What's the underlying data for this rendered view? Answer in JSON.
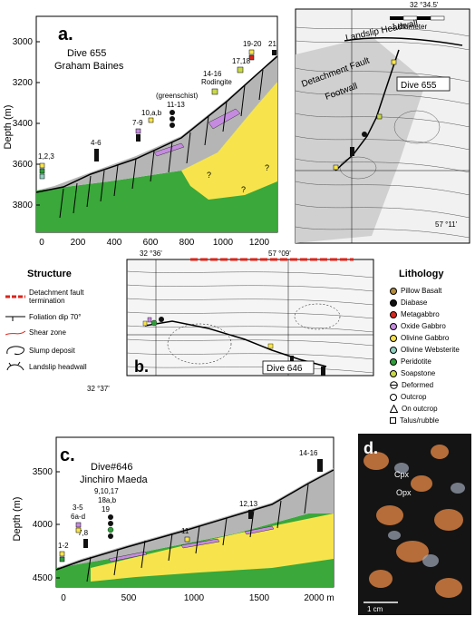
{
  "panel_a": {
    "letter": "a.",
    "dive_label": "Dive 655",
    "pilot": "Graham Baines",
    "y_axis_label": "Depth (m)",
    "y_ticks": [
      "3000",
      "3200",
      "3400",
      "3600",
      "3800"
    ],
    "x_ticks": [
      "0",
      "200",
      "400",
      "600",
      "800",
      "1000",
      "1200"
    ],
    "sample_labels": [
      "1,2,3",
      "4-6",
      "7-9",
      "10,a,b",
      "(greenschist)",
      "11-13",
      "14-16",
      "Rodingite",
      "17,18",
      "19-20",
      "21"
    ],
    "question_marks": [
      "?",
      "?",
      "?"
    ]
  },
  "map_top": {
    "lat_label": "32 °34.5'",
    "lon_label": "57 °11'",
    "scale_label": "1 kilometer",
    "headwall_label": "Landslip Headwall",
    "fault_label_1": "Detachment Fault",
    "fault_label_2": "Footwall",
    "dive_label": "Dive 655"
  },
  "map_bottom": {
    "letter": "b.",
    "lat_top": "32 °36'",
    "lon_top": "57 °09'",
    "lat_bottom": "32 °37'",
    "dive_label": "Dive 646"
  },
  "structure_legend": {
    "title": "Structure",
    "items": [
      "Detachment fault termination",
      "Foliation dip 70°",
      "Shear zone",
      "Slump deposit",
      "Landslip headwall"
    ],
    "dip_value": "70°"
  },
  "lithology_legend": {
    "title": "Lithology",
    "items": [
      {
        "label": "Pillow Basalt",
        "color": "#b08a3e",
        "shape": "circle"
      },
      {
        "label": "Diabase",
        "color": "#111111",
        "shape": "circle"
      },
      {
        "label": "Metagabbro",
        "color": "#d9261c",
        "shape": "circle"
      },
      {
        "label": "Oxide Gabbro",
        "color": "#c58be0",
        "shape": "circle"
      },
      {
        "label": "Olivine Gabbro",
        "color": "#f5e04a",
        "shape": "circle"
      },
      {
        "label": "Olivine Websterite",
        "color": "#8fd0c0",
        "shape": "circle"
      },
      {
        "label": "Peridotite",
        "color": "#2e9e3a",
        "shape": "circle"
      },
      {
        "label": "Soapstone",
        "color": "#c8d84a",
        "shape": "circle"
      },
      {
        "label": "Deformed",
        "color": "#ffffff",
        "shape": "deformed"
      },
      {
        "label": "Outcrop",
        "color": "#ffffff",
        "shape": "circle"
      },
      {
        "label": "On outcrop",
        "color": "#ffffff",
        "shape": "triangle"
      },
      {
        "label": "Talus/rubble",
        "color": "#ffffff",
        "shape": "square"
      }
    ]
  },
  "panel_c": {
    "letter": "c.",
    "dive_label": "Dive#646",
    "pilot": "Jinchiro Maeda",
    "y_axis_label": "Depth (m)",
    "y_ticks": [
      "3500",
      "4000",
      "4500"
    ],
    "x_ticks": [
      "0",
      "500",
      "1000",
      "1500",
      "2000 m"
    ],
    "sample_labels": [
      "1-2",
      "3-5",
      "6a-d",
      "7,8",
      "9,10,17",
      "18a,b",
      "19",
      "11",
      "12,13",
      "14-16"
    ]
  },
  "panel_d": {
    "letter": "d.",
    "mineral_1": "Cpx",
    "mineral_2": "Opx",
    "scale_label": "1 cm"
  }
}
